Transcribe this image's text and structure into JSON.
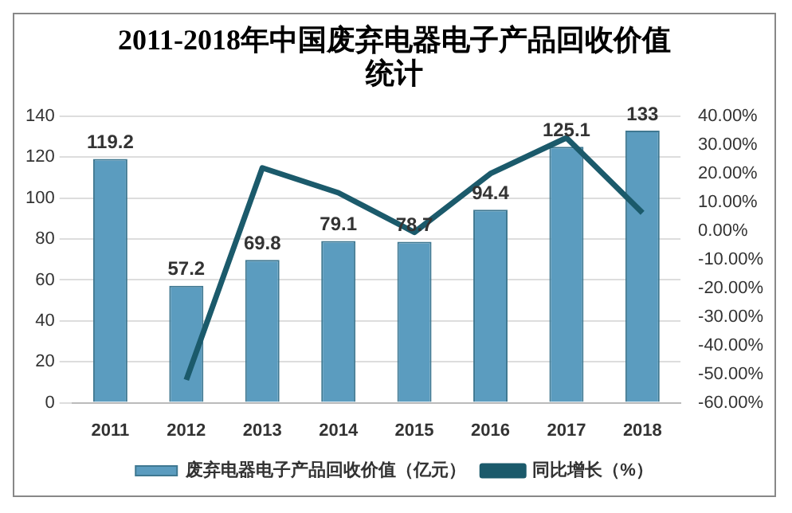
{
  "chart_data": {
    "type": "bar",
    "title": "2011-2018年中国废弃电器电子产品回收价值统计",
    "categories": [
      "2011",
      "2012",
      "2013",
      "2014",
      "2015",
      "2016",
      "2017",
      "2018"
    ],
    "series": [
      {
        "name": "废弃电器电子产品回收价值（亿元）",
        "color": "#5b9cbf",
        "values": [
          119.2,
          57.2,
          69.8,
          79.1,
          78.7,
          94.4,
          125.1,
          133
        ],
        "value_labels": [
          "119.2",
          "57.2",
          "69.8",
          "79.1",
          "78.7",
          "94.4",
          "125.1",
          "133"
        ]
      },
      {
        "name": "同比增长（%）",
        "type": "line",
        "axis": "y2",
        "color": "#1b5a6b",
        "marker": "none",
        "values": [
          null,
          -52,
          22,
          13.3,
          -0.5,
          20,
          32.5,
          6.3
        ]
      }
    ],
    "ylim": [
      0,
      140
    ],
    "yticks": [
      0,
      20,
      40,
      60,
      80,
      100,
      120,
      140
    ],
    "y2lim": [
      -60,
      40
    ],
    "y2ticks": [
      {
        "value": -60,
        "label": "-60.00%"
      },
      {
        "value": -50,
        "label": "-50.00%"
      },
      {
        "value": -40,
        "label": "-40.00%"
      },
      {
        "value": -30,
        "label": "-30.00%"
      },
      {
        "value": -20,
        "label": "-20.00%"
      },
      {
        "value": -10,
        "label": "-10.00%"
      },
      {
        "value": 0,
        "label": "0.00%"
      },
      {
        "value": 10,
        "label": "10.00%"
      },
      {
        "value": 20,
        "label": "20.00%"
      },
      {
        "value": 30,
        "label": "30.00%"
      },
      {
        "value": 40,
        "label": "40.00%"
      }
    ],
    "grid": "y",
    "legend": "bottom"
  }
}
